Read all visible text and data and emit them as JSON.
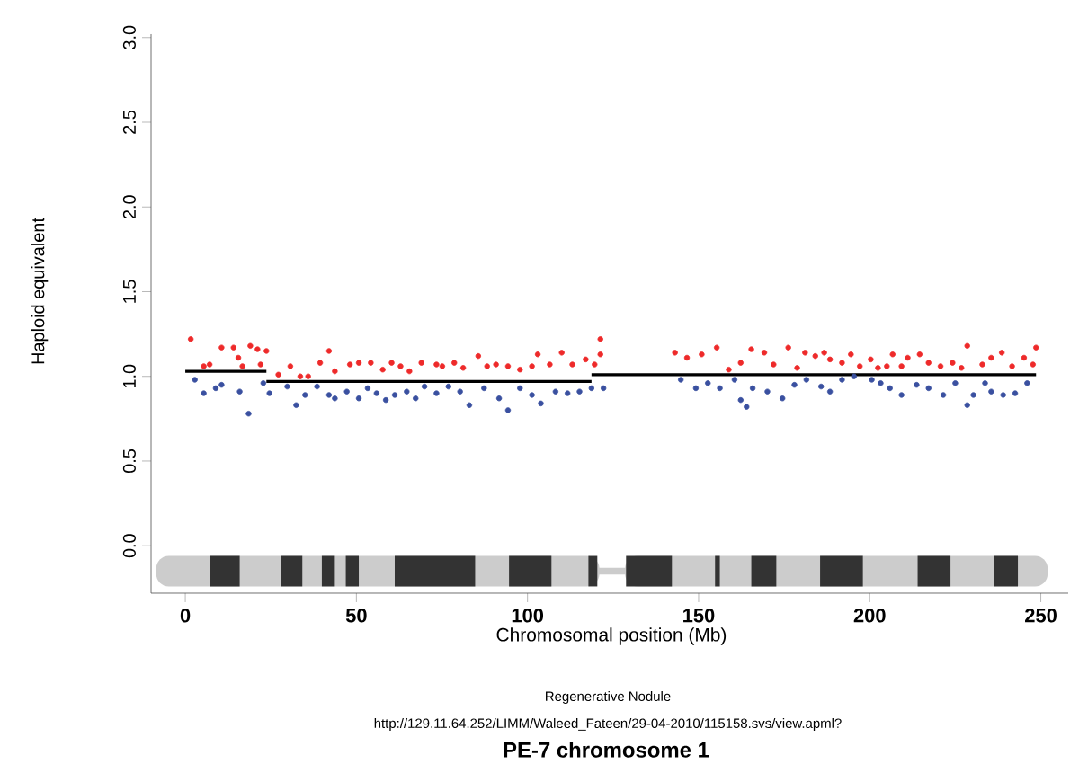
{
  "chart_data": {
    "type": "scatter",
    "title": "PE-7 chromosome 1",
    "xlabel": "Chromosomal position (Mb)",
    "ylabel": "Haploid equivalent",
    "annotations": [
      "Regenerative Nodule",
      "http://129.11.64.252/LIMM/Waleed_Fateen/29-04-2010/115158.svs/view.apml?"
    ],
    "xlim": [
      -10,
      258
    ],
    "ylim": [
      -0.28,
      3.02
    ],
    "xticks": [
      0,
      50,
      100,
      150,
      200,
      250
    ],
    "yticks": [
      {
        "value": 0,
        "label": "0.0"
      },
      {
        "value": 0.5,
        "label": "0.5"
      },
      {
        "value": 1,
        "label": "1.0"
      },
      {
        "value": 1.5,
        "label": "1.5"
      },
      {
        "value": 2,
        "label": "2.0"
      },
      {
        "value": 2.5,
        "label": "2.5"
      },
      {
        "value": 3,
        "label": "3.0"
      }
    ],
    "marker": "circle",
    "grid": false,
    "series": [
      {
        "color": "#ee2a2a",
        "x": [
          1.6,
          5.4,
          7.1,
          10.6,
          14.1,
          15.5,
          16.7,
          19.0,
          21.1,
          23.7,
          22.0,
          27.2,
          30.7,
          33.6,
          35.9,
          39.4,
          42.0,
          43.7,
          48.1,
          50.7,
          54.2,
          57.7,
          60.3,
          62.9,
          65.5,
          69.0,
          73.4,
          75.1,
          78.6,
          81.2,
          85.6,
          88.2,
          90.8,
          94.3,
          97.8,
          101.3,
          103.0,
          106.5,
          110.0,
          113.1,
          117.0,
          119.6,
          121.3,
          121.3,
          143.1,
          146.6,
          150.9,
          155.3,
          158.8,
          162.3,
          165.4,
          169.2,
          171.9,
          176.2,
          178.8,
          181.1,
          184.1,
          186.7,
          188.4,
          191.9,
          194.5,
          197.1,
          200.3,
          202.4,
          205.0,
          206.7,
          209.3,
          211.1,
          214.6,
          217.2,
          220.7,
          224.2,
          226.8,
          228.5,
          232.9,
          235.5,
          238.6,
          241.6,
          245.1,
          247.7,
          248.6
        ],
        "values": [
          1.22,
          1.06,
          1.07,
          1.17,
          1.17,
          1.11,
          1.06,
          1.18,
          1.16,
          1.15,
          1.07,
          1.01,
          1.06,
          1.0,
          1.0,
          1.08,
          1.15,
          1.03,
          1.07,
          1.08,
          1.08,
          1.04,
          1.08,
          1.06,
          1.03,
          1.08,
          1.07,
          1.06,
          1.08,
          1.05,
          1.12,
          1.06,
          1.07,
          1.06,
          1.04,
          1.06,
          1.13,
          1.07,
          1.14,
          1.07,
          1.1,
          1.07,
          1.22,
          1.13,
          1.14,
          1.11,
          1.13,
          1.17,
          1.04,
          1.08,
          1.16,
          1.14,
          1.07,
          1.17,
          1.05,
          1.14,
          1.12,
          1.14,
          1.1,
          1.08,
          1.13,
          1.06,
          1.1,
          1.05,
          1.06,
          1.13,
          1.06,
          1.11,
          1.13,
          1.08,
          1.06,
          1.08,
          1.05,
          1.18,
          1.07,
          1.11,
          1.14,
          1.06,
          1.11,
          1.07,
          1.17
        ]
      },
      {
        "color": "#3a50a0",
        "x": [
          2.8,
          5.4,
          8.9,
          10.6,
          15.9,
          18.5,
          22.8,
          24.6,
          29.8,
          32.4,
          35.0,
          38.5,
          42.0,
          43.7,
          47.2,
          50.7,
          53.3,
          55.9,
          58.6,
          61.2,
          64.7,
          67.3,
          69.9,
          73.4,
          76.9,
          80.3,
          83.0,
          87.3,
          91.7,
          94.3,
          97.8,
          101.3,
          103.9,
          108.2,
          111.7,
          115.2,
          118.7,
          122.2,
          144.8,
          149.2,
          152.7,
          156.2,
          160.5,
          162.3,
          164.0,
          165.8,
          170.1,
          174.5,
          178.0,
          181.5,
          185.8,
          188.4,
          191.9,
          195.4,
          200.6,
          203.2,
          205.9,
          209.3,
          213.7,
          217.2,
          221.5,
          225.0,
          228.5,
          230.3,
          233.7,
          235.5,
          239.0,
          242.5,
          246.0
        ],
        "values": [
          0.98,
          0.9,
          0.93,
          0.95,
          0.91,
          0.78,
          0.96,
          0.9,
          0.94,
          0.83,
          0.89,
          0.94,
          0.89,
          0.87,
          0.91,
          0.87,
          0.93,
          0.9,
          0.86,
          0.89,
          0.91,
          0.87,
          0.94,
          0.9,
          0.94,
          0.91,
          0.83,
          0.93,
          0.87,
          0.8,
          0.93,
          0.89,
          0.84,
          0.91,
          0.9,
          0.91,
          0.93,
          0.93,
          0.98,
          0.93,
          0.96,
          0.93,
          0.98,
          0.86,
          0.82,
          0.93,
          0.91,
          0.87,
          0.95,
          0.98,
          0.94,
          0.91,
          0.98,
          1.0,
          0.98,
          0.96,
          0.93,
          0.89,
          0.95,
          0.93,
          0.89,
          0.96,
          0.83,
          0.89,
          0.96,
          0.91,
          0.89,
          0.9,
          0.96
        ]
      },
      {
        "type": "line",
        "color": "#000000",
        "marker": "none",
        "x": [
          0,
          23.7
        ],
        "values": [
          1.03,
          1.03
        ]
      },
      {
        "type": "line",
        "color": "#000000",
        "marker": "none",
        "x": [
          23.7,
          118.7
        ],
        "values": [
          0.97,
          0.97
        ]
      },
      {
        "type": "line",
        "color": "#000000",
        "marker": "none",
        "x": [
          118.7,
          248.6
        ],
        "values": [
          1.01,
          1.01
        ]
      }
    ]
  }
}
